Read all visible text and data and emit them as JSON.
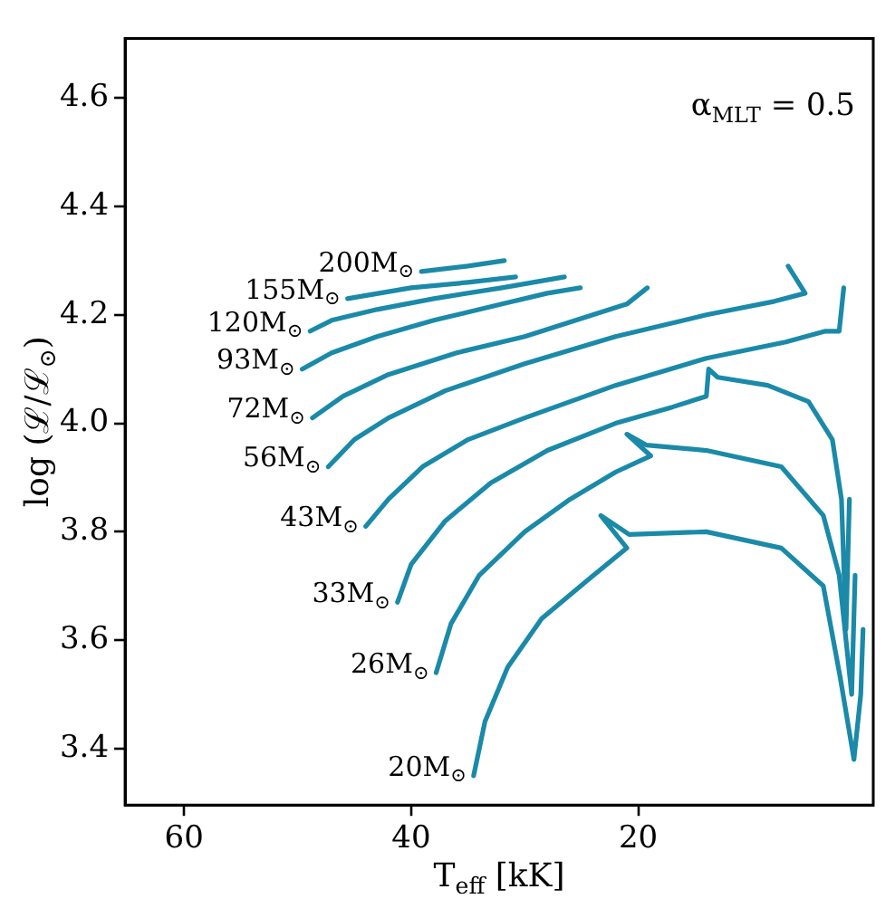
{
  "chart_data": {
    "type": "line",
    "xlabel": "T$_{eff}$ [kK]",
    "ylabel": "log (ℒ/ℒ$_{⊙}$)",
    "xlim": [
      65.2,
      -0.7
    ],
    "ylim": [
      3.296,
      4.71
    ],
    "xticks": [
      60,
      40,
      20
    ],
    "yticks": [
      {
        "value": 3.4,
        "label": "3.4"
      },
      {
        "value": 3.6,
        "label": "3.6"
      },
      {
        "value": 3.8,
        "label": "3.8"
      },
      {
        "value": 4.0,
        "label": "4.0"
      },
      {
        "value": 4.2,
        "label": "4.2"
      },
      {
        "value": 4.4,
        "label": "4.4"
      },
      {
        "value": 4.6,
        "label": "4.6"
      }
    ],
    "grid": false,
    "legend": false,
    "marker": "none",
    "line_style": "solid",
    "series": [
      {
        "color": "#1a8aa8",
        "x": [
          39.1,
          35,
          31.8
        ],
        "values": [
          4.28,
          4.29,
          4.3
        ]
      },
      {
        "color": "#1a8aa8",
        "x": [
          45.6,
          40,
          35,
          30.8
        ],
        "values": [
          4.23,
          4.25,
          4.26,
          4.27
        ]
      },
      {
        "color": "#1a8aa8",
        "x": [
          48.9,
          47,
          43,
          38,
          32,
          26.5
        ],
        "values": [
          4.17,
          4.19,
          4.21,
          4.23,
          4.25,
          4.27
        ]
      },
      {
        "color": "#1a8aa8",
        "x": [
          49.6,
          47,
          43,
          38,
          32,
          28,
          25.1
        ],
        "values": [
          4.1,
          4.13,
          4.16,
          4.19,
          4.22,
          4.24,
          4.25
        ]
      },
      {
        "color": "#1a8aa8",
        "x": [
          48.7,
          46,
          42,
          36,
          30,
          24,
          21,
          19.2
        ],
        "values": [
          4.01,
          4.05,
          4.09,
          4.13,
          4.16,
          4.2,
          4.22,
          4.25
        ]
      },
      {
        "color": "#1a8aa8",
        "x": [
          47.3,
          45,
          42,
          37,
          30,
          22,
          14,
          8,
          5.3,
          6.8
        ],
        "values": [
          3.92,
          3.97,
          4.01,
          4.06,
          4.11,
          4.16,
          4.2,
          4.225,
          4.24,
          4.29
        ]
      },
      {
        "color": "#1a8aa8",
        "x": [
          44.0,
          42,
          39,
          35,
          30,
          22,
          14,
          7,
          3.5,
          2.3,
          1.9
        ],
        "values": [
          3.81,
          3.86,
          3.92,
          3.97,
          4.01,
          4.07,
          4.12,
          4.15,
          4.17,
          4.17,
          4.25
        ]
      },
      {
        "color": "#1a8aa8",
        "x": [
          41.2,
          40,
          37,
          33,
          28,
          22,
          17,
          14,
          13.8,
          13,
          8.6,
          5,
          2.9,
          2.1,
          1.7,
          1.4
        ],
        "values": [
          3.67,
          3.74,
          3.82,
          3.89,
          3.95,
          4.0,
          4.03,
          4.05,
          4.1,
          4.085,
          4.07,
          4.04,
          3.97,
          3.86,
          3.62,
          3.86
        ]
      },
      {
        "color": "#1a8aa8",
        "x": [
          37.8,
          36.5,
          34,
          30,
          26,
          22,
          18.9,
          21,
          19.3,
          14,
          7.4,
          3.7,
          2.3,
          1.2,
          0.9
        ],
        "values": [
          3.54,
          3.63,
          3.72,
          3.8,
          3.86,
          3.91,
          3.94,
          3.98,
          3.96,
          3.95,
          3.92,
          3.83,
          3.72,
          3.5,
          3.72
        ]
      },
      {
        "color": "#1a8aa8",
        "x": [
          34.5,
          33.5,
          31.5,
          28.5,
          24.5,
          21,
          23.3,
          20.8,
          14,
          7.4,
          3.7,
          2.2,
          1.0,
          0.4,
          0.2
        ],
        "values": [
          3.35,
          3.45,
          3.55,
          3.64,
          3.71,
          3.77,
          3.83,
          3.795,
          3.8,
          3.77,
          3.7,
          3.53,
          3.38,
          3.5,
          3.62
        ]
      }
    ],
    "annotations": [
      {
        "text": "200M$_{⊙}$",
        "x": 39.1,
        "y": 4.28
      },
      {
        "text": "155M$_{⊙}$",
        "x": 45.6,
        "y": 4.23
      },
      {
        "text": "120M$_{⊙}$",
        "x": 48.9,
        "y": 4.17
      },
      {
        "text": "93M$_{⊙}$",
        "x": 49.6,
        "y": 4.1
      },
      {
        "text": "72M$_{⊙}$",
        "x": 48.7,
        "y": 4.01
      },
      {
        "text": "56M$_{⊙}$",
        "x": 47.3,
        "y": 3.92
      },
      {
        "text": "43M$_{⊙}$",
        "x": 44.0,
        "y": 3.81
      },
      {
        "text": "33M$_{⊙}$",
        "x": 41.2,
        "y": 3.67
      },
      {
        "text": "26M$_{⊙}$",
        "x": 37.8,
        "y": 3.54
      },
      {
        "text": "20M$_{⊙}$",
        "x": 34.5,
        "y": 3.35
      },
      "α$_{MLT}$ = 0.5"
    ]
  }
}
